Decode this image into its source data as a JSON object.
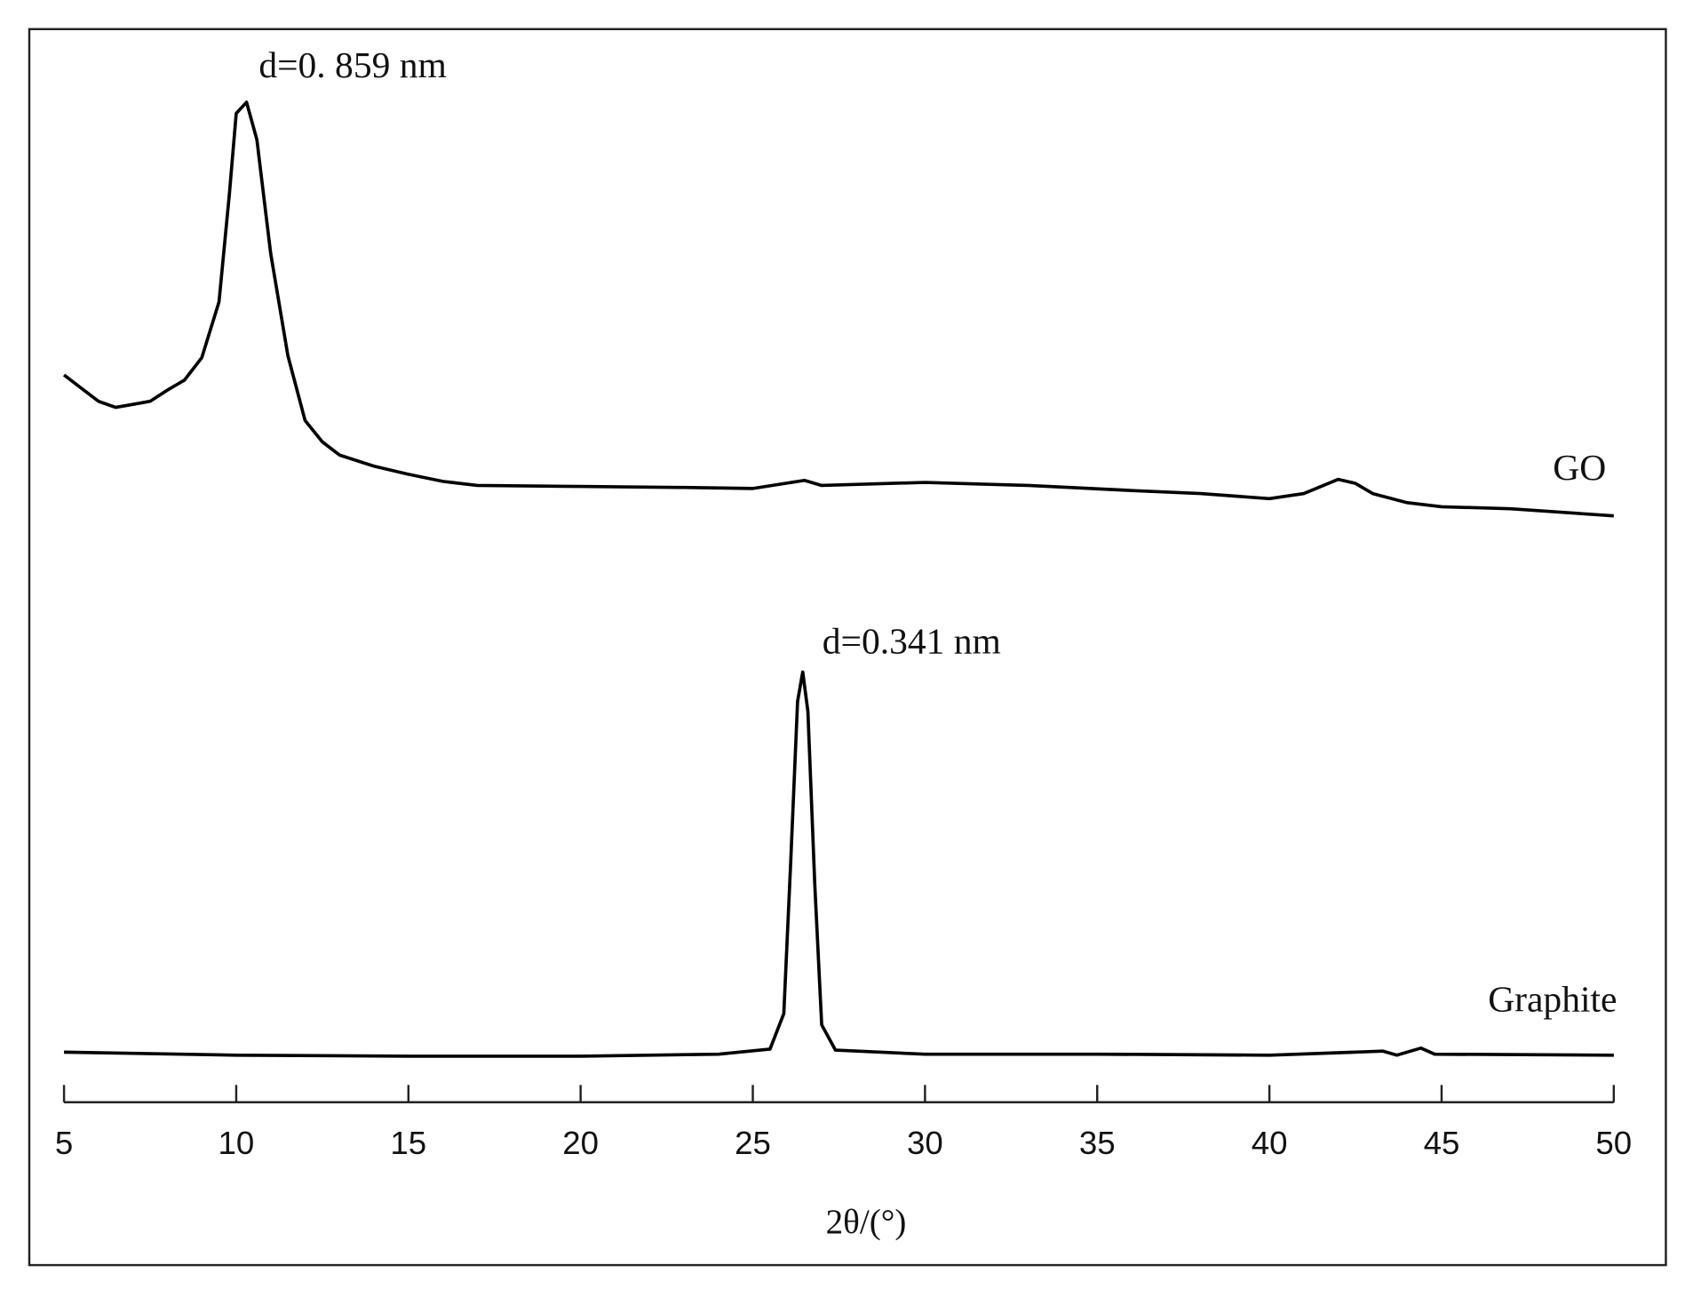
{
  "chart_data": {
    "type": "line",
    "x_label": "2θ/(°)",
    "xlim": [
      5,
      50
    ],
    "xticks": [
      5,
      10,
      15,
      20,
      25,
      30,
      35,
      40,
      45,
      50
    ],
    "ylim": [
      0,
      100
    ],
    "annotations": [
      {
        "text": "d=0. 859 nm",
        "x": 10.3,
        "y": 96.3
      },
      {
        "text": "d=0.341 nm",
        "x": 26.45,
        "y": 40.1
      }
    ],
    "series": [
      {
        "name": "GO",
        "color": "#000000",
        "x": [
          5,
          5.5,
          6,
          6.5,
          7,
          7.5,
          8,
          8.5,
          9,
          9.5,
          9.8,
          10,
          10.3,
          10.6,
          11,
          11.5,
          12,
          12.5,
          13,
          14,
          15,
          16,
          17,
          20,
          23,
          25,
          26.5,
          27,
          30,
          33,
          36,
          38,
          40,
          41,
          42,
          42.5,
          43,
          44,
          45,
          47,
          50
        ],
        "values": [
          69.4,
          68.1,
          66.8,
          66.2,
          66.5,
          66.8,
          67.9,
          68.9,
          71.1,
          76.6,
          87.2,
          95.2,
          96.3,
          92.6,
          81.4,
          71.3,
          64.9,
          62.8,
          61.5,
          60.4,
          59.6,
          58.9,
          58.5,
          58.4,
          58.3,
          58.2,
          59.0,
          58.5,
          58.8,
          58.5,
          58.0,
          57.7,
          57.2,
          57.7,
          59.1,
          58.7,
          57.7,
          56.8,
          56.4,
          56.2,
          55.5
        ]
      },
      {
        "name": "Graphite",
        "color": "#000000",
        "x": [
          5,
          10,
          15,
          20,
          24,
          25.5,
          25.9,
          26.1,
          26.3,
          26.45,
          26.6,
          26.8,
          27,
          27.4,
          30,
          35,
          40,
          43.3,
          43.7,
          44.4,
          44.8,
          50
        ],
        "values": [
          2.6,
          2.3,
          2.2,
          2.2,
          2.4,
          2.9,
          6.4,
          21.3,
          37.2,
          40.1,
          36.2,
          19.1,
          5.3,
          2.8,
          2.4,
          2.4,
          2.3,
          2.7,
          2.3,
          3.0,
          2.4,
          2.3
        ]
      }
    ]
  }
}
